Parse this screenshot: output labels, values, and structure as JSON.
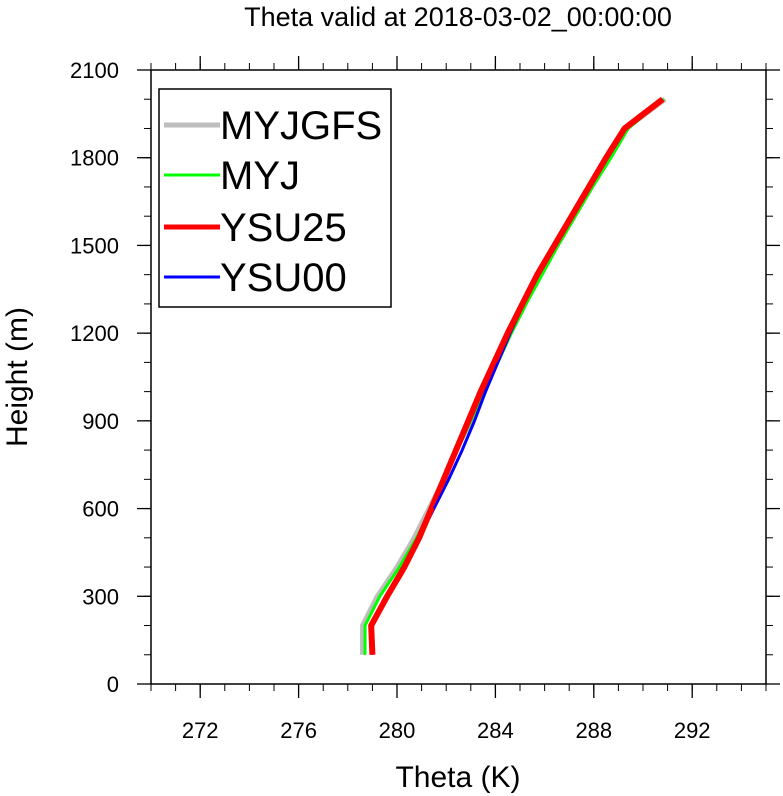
{
  "chart_data": {
    "type": "line",
    "title": "Theta valid at 2018-03-02_00:00:00",
    "xlabel": "Theta (K)",
    "ylabel": "Height (m)",
    "xlim": [
      270,
      295
    ],
    "ylim": [
      0,
      2100
    ],
    "xticks": [
      272,
      276,
      280,
      284,
      288,
      292
    ],
    "yticks": [
      0,
      300,
      600,
      900,
      1200,
      1500,
      1800,
      2100
    ],
    "x_minor_step": 1,
    "y_minor_step": 100,
    "grid": false,
    "legend_position": "top-left",
    "series": [
      {
        "name": "MYJGFS",
        "color": "#bebebe",
        "points": [
          [
            278.6,
            100
          ],
          [
            278.6,
            200
          ],
          [
            279.2,
            300
          ],
          [
            280.0,
            400
          ],
          [
            280.7,
            500
          ],
          [
            281.3,
            600
          ],
          [
            281.9,
            700
          ],
          [
            282.4,
            800
          ],
          [
            283.0,
            900
          ],
          [
            283.5,
            1000
          ],
          [
            284.0,
            1100
          ],
          [
            284.6,
            1200
          ],
          [
            285.2,
            1300
          ],
          [
            285.8,
            1400
          ],
          [
            286.5,
            1500
          ],
          [
            287.2,
            1600
          ],
          [
            287.9,
            1700
          ],
          [
            288.6,
            1800
          ],
          [
            289.3,
            1900
          ],
          [
            290.9,
            2000
          ]
        ]
      },
      {
        "name": "MYJ",
        "color": "#00ff00",
        "points": [
          [
            278.7,
            100
          ],
          [
            278.7,
            200
          ],
          [
            279.3,
            300
          ],
          [
            280.1,
            400
          ],
          [
            280.8,
            500
          ],
          [
            281.4,
            600
          ],
          [
            281.95,
            700
          ],
          [
            282.45,
            800
          ],
          [
            283.0,
            900
          ],
          [
            283.55,
            1000
          ],
          [
            284.1,
            1100
          ],
          [
            284.65,
            1200
          ],
          [
            285.25,
            1300
          ],
          [
            285.9,
            1400
          ],
          [
            286.55,
            1500
          ],
          [
            287.25,
            1600
          ],
          [
            287.95,
            1700
          ],
          [
            288.7,
            1800
          ],
          [
            289.4,
            1900
          ],
          [
            290.85,
            2000
          ]
        ]
      },
      {
        "name": "YSU25",
        "color": "#ff0000",
        "points": [
          [
            279.0,
            100
          ],
          [
            278.95,
            200
          ],
          [
            279.6,
            300
          ],
          [
            280.3,
            400
          ],
          [
            280.9,
            500
          ],
          [
            281.4,
            600
          ],
          [
            281.9,
            700
          ],
          [
            282.4,
            800
          ],
          [
            282.9,
            900
          ],
          [
            283.4,
            1000
          ],
          [
            283.95,
            1100
          ],
          [
            284.5,
            1200
          ],
          [
            285.1,
            1300
          ],
          [
            285.7,
            1400
          ],
          [
            286.4,
            1500
          ],
          [
            287.1,
            1600
          ],
          [
            287.8,
            1700
          ],
          [
            288.5,
            1800
          ],
          [
            289.25,
            1900
          ],
          [
            290.8,
            2000
          ]
        ]
      },
      {
        "name": "YSU00",
        "color": "#0000ff",
        "points": [
          [
            279.0,
            100
          ],
          [
            278.95,
            200
          ],
          [
            279.6,
            300
          ],
          [
            280.3,
            400
          ],
          [
            280.9,
            500
          ],
          [
            281.5,
            600
          ],
          [
            282.1,
            700
          ],
          [
            282.65,
            800
          ],
          [
            283.15,
            900
          ],
          [
            283.6,
            1000
          ],
          [
            284.1,
            1100
          ],
          [
            284.6,
            1200
          ],
          [
            285.15,
            1300
          ],
          [
            285.75,
            1400
          ],
          [
            286.4,
            1500
          ],
          [
            287.1,
            1600
          ],
          [
            287.8,
            1700
          ],
          [
            288.5,
            1800
          ],
          [
            289.25,
            1900
          ],
          [
            290.8,
            2000
          ]
        ]
      }
    ]
  }
}
